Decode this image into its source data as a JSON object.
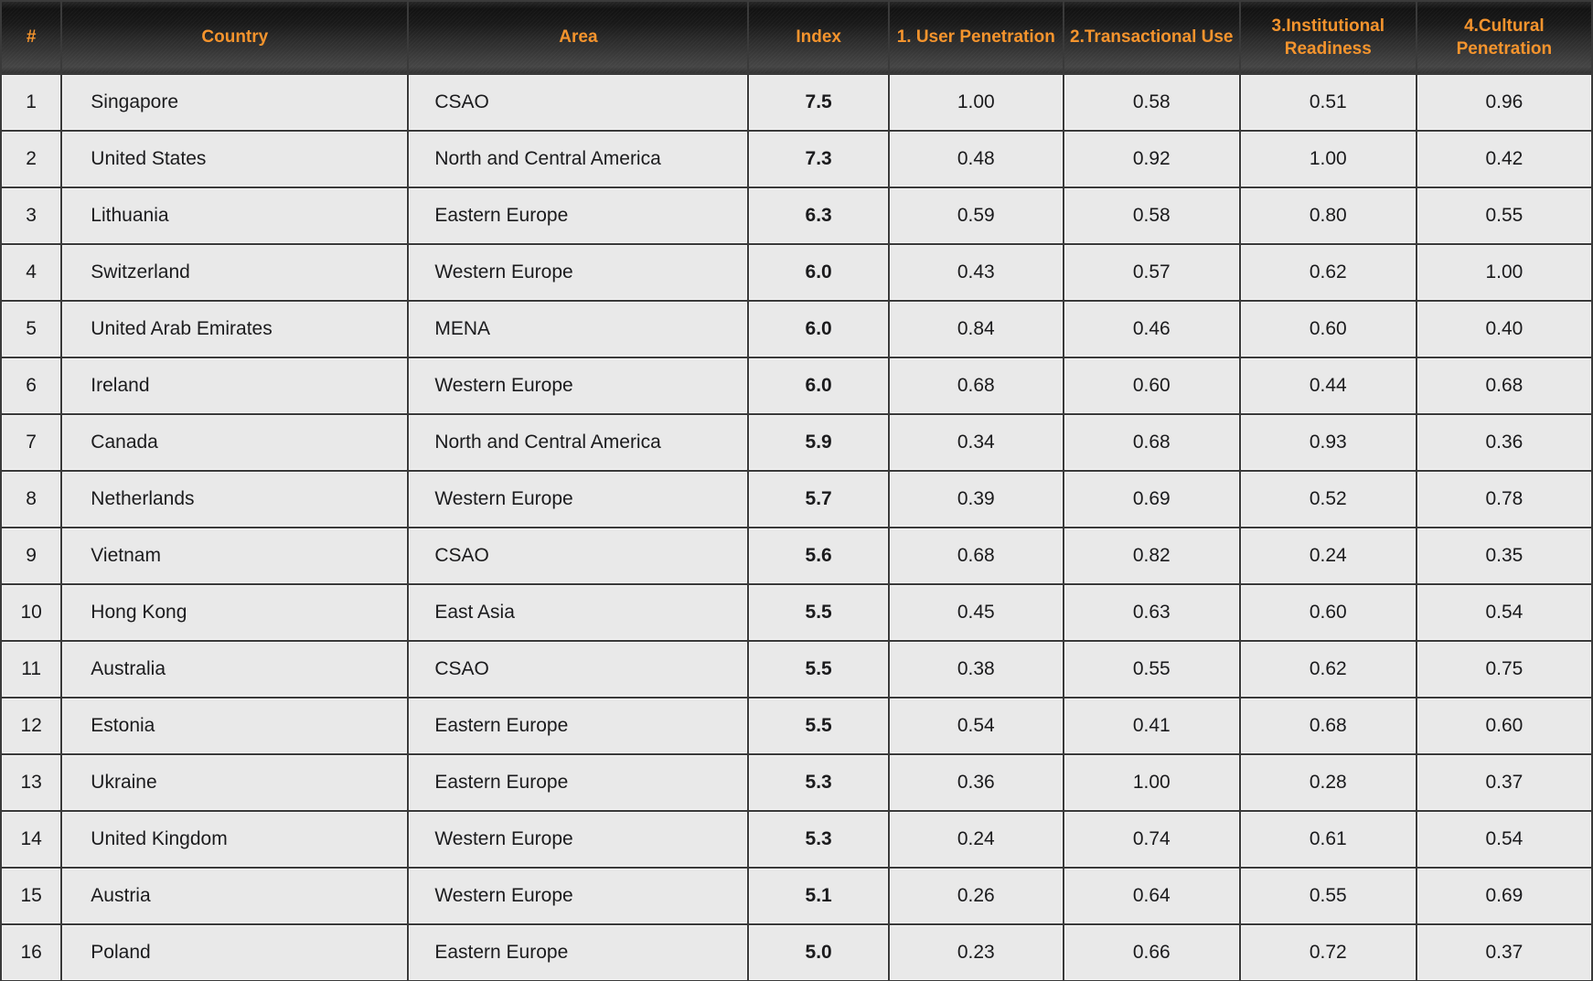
{
  "chart_data": {
    "type": "table",
    "columns": [
      "#",
      "Country",
      "Area",
      "Index",
      "1. User Penetration",
      "2.Transactional Use",
      "3.Institutional Readiness",
      "4.Cultural Penetration"
    ],
    "rows": [
      [
        "1",
        "Singapore",
        "CSAO",
        "7.5",
        "1.00",
        "0.58",
        "0.51",
        "0.96"
      ],
      [
        "2",
        "United States",
        "North and Central America",
        "7.3",
        "0.48",
        "0.92",
        "1.00",
        "0.42"
      ],
      [
        "3",
        "Lithuania",
        "Eastern Europe",
        "6.3",
        "0.59",
        "0.58",
        "0.80",
        "0.55"
      ],
      [
        "4",
        "Switzerland",
        "Western Europe",
        "6.0",
        "0.43",
        "0.57",
        "0.62",
        "1.00"
      ],
      [
        "5",
        "United Arab Emirates",
        "MENA",
        "6.0",
        "0.84",
        "0.46",
        "0.60",
        "0.40"
      ],
      [
        "6",
        "Ireland",
        "Western Europe",
        "6.0",
        "0.68",
        "0.60",
        "0.44",
        "0.68"
      ],
      [
        "7",
        "Canada",
        "North and Central America",
        "5.9",
        "0.34",
        "0.68",
        "0.93",
        "0.36"
      ],
      [
        "8",
        "Netherlands",
        "Western Europe",
        "5.7",
        "0.39",
        "0.69",
        "0.52",
        "0.78"
      ],
      [
        "9",
        "Vietnam",
        "CSAO",
        "5.6",
        "0.68",
        "0.82",
        "0.24",
        "0.35"
      ],
      [
        "10",
        "Hong Kong",
        "East Asia",
        "5.5",
        "0.45",
        "0.63",
        "0.60",
        "0.54"
      ],
      [
        "11",
        "Australia",
        "CSAO",
        "5.5",
        "0.38",
        "0.55",
        "0.62",
        "0.75"
      ],
      [
        "12",
        "Estonia",
        "Eastern Europe",
        "5.5",
        "0.54",
        "0.41",
        "0.68",
        "0.60"
      ],
      [
        "13",
        "Ukraine",
        "Eastern Europe",
        "5.3",
        "0.36",
        "1.00",
        "0.28",
        "0.37"
      ],
      [
        "14",
        "United Kingdom",
        "Western Europe",
        "5.3",
        "0.24",
        "0.74",
        "0.61",
        "0.54"
      ],
      [
        "15",
        "Austria",
        "Western Europe",
        "5.1",
        "0.26",
        "0.64",
        "0.55",
        "0.69"
      ],
      [
        "16",
        "Poland",
        "Eastern Europe",
        "5.0",
        "0.23",
        "0.66",
        "0.72",
        "0.37"
      ]
    ]
  },
  "colors": {
    "header_text": "#f5942d",
    "header_bg_top": "#121212",
    "header_bg_bottom": "#3e3e3e",
    "cell_bg": "#e9e9e9",
    "separator": "#3a3a3a",
    "cell_text": "#1b1b1d"
  }
}
